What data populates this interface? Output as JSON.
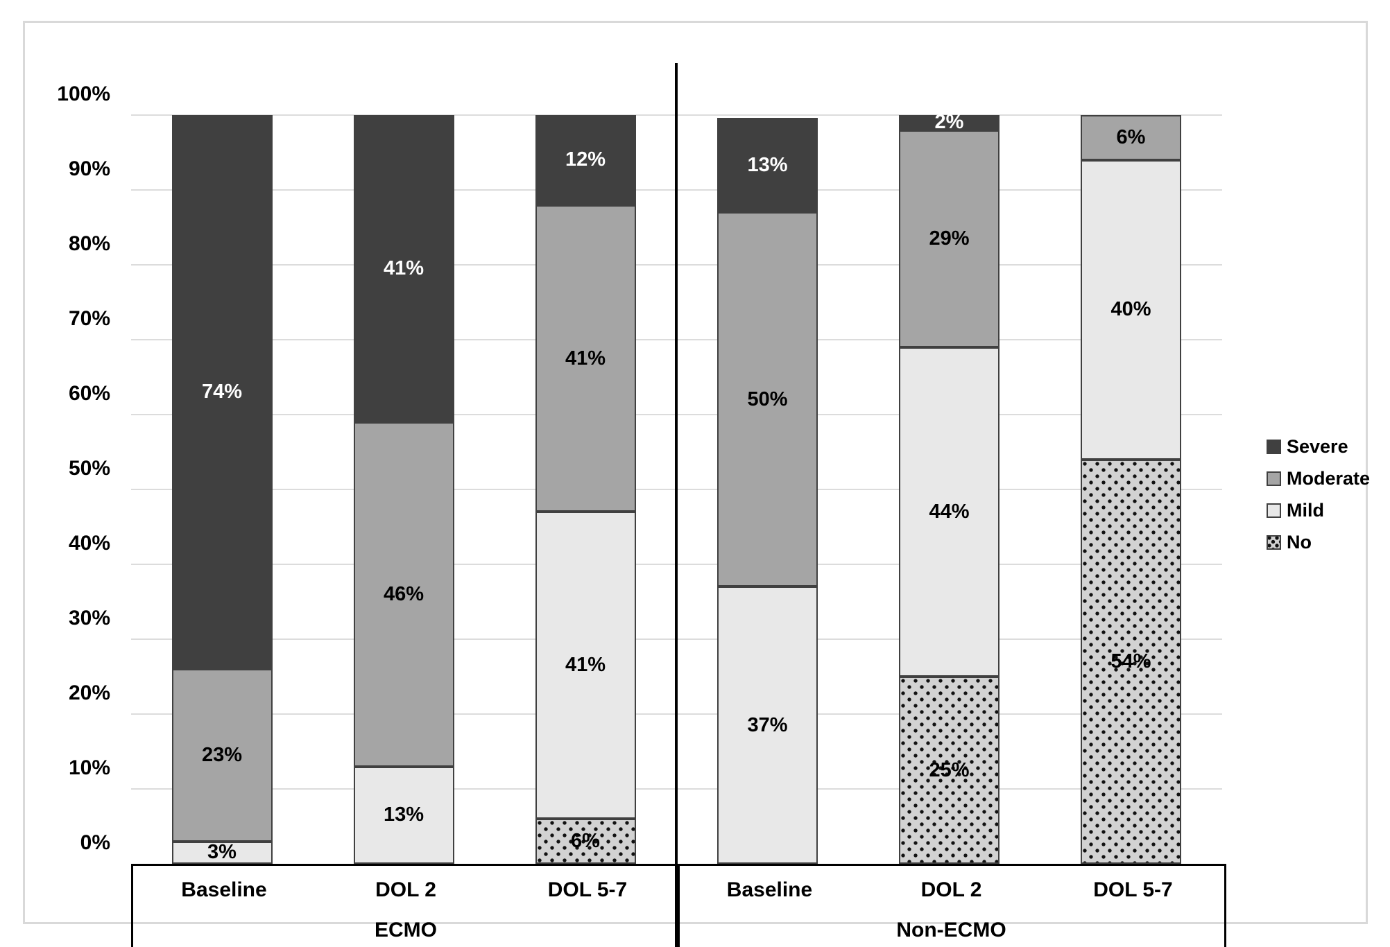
{
  "chart_data": {
    "type": "bar",
    "subtype": "100-percent-stacked-column",
    "title": "",
    "y_axis": {
      "label": "",
      "min": 0,
      "max": 100,
      "unit": "%",
      "ticks": [
        "0%",
        "10%",
        "20%",
        "30%",
        "40%",
        "50%",
        "60%",
        "70%",
        "80%",
        "90%",
        "100%"
      ],
      "grid": true
    },
    "series_stack_order_bottom_to_top": [
      "No",
      "Mild",
      "Moderate",
      "Severe"
    ],
    "legend": {
      "position": "right",
      "items": [
        {
          "label": "Severe",
          "color": "#404040",
          "pattern": "solid"
        },
        {
          "label": "Moderate",
          "color": "#a5a5a5",
          "pattern": "solid"
        },
        {
          "label": "Mild",
          "color": "#e8e8e8",
          "pattern": "solid"
        },
        {
          "label": "No",
          "color": "#d2d2d2",
          "pattern": "dots"
        }
      ]
    },
    "groups": [
      {
        "label": "ECMO",
        "categories": [
          "Baseline",
          "DOL 2",
          "DOL 5-7"
        ]
      },
      {
        "label": "Non-ECMO",
        "categories": [
          "Baseline",
          "DOL 2",
          "DOL 5-7"
        ]
      }
    ],
    "bars": [
      {
        "group": "ECMO",
        "category": "Baseline",
        "segments": [
          {
            "series": "Mild",
            "value": 3,
            "label": "3%",
            "height_pct": 3
          },
          {
            "series": "Moderate",
            "value": 23,
            "label": "23%",
            "height_pct": 23
          },
          {
            "series": "Severe",
            "value": 74,
            "label": "74%",
            "height_pct": 74
          }
        ]
      },
      {
        "group": "ECMO",
        "category": "DOL 2",
        "segments": [
          {
            "series": "Mild",
            "value": 13,
            "label": "13%",
            "height_pct": 13
          },
          {
            "series": "Moderate",
            "value": 46,
            "label": "46%",
            "height_pct": 46
          },
          {
            "series": "Severe",
            "value": 41,
            "label": "41%",
            "height_pct": 41
          }
        ]
      },
      {
        "group": "ECMO",
        "category": "DOL 5-7",
        "segments": [
          {
            "series": "No",
            "value": 6,
            "label": "6%",
            "height_pct": 6
          },
          {
            "series": "Mild",
            "value": 41,
            "label": "41%",
            "height_pct": 41
          },
          {
            "series": "Moderate",
            "value": 41,
            "label": "41%",
            "height_pct": 41
          },
          {
            "series": "Severe",
            "value": 12,
            "label": "12%",
            "height_pct": 12
          }
        ]
      },
      {
        "group": "Non-ECMO",
        "category": "Baseline",
        "segments": [
          {
            "series": "Mild",
            "value": 37,
            "label": "37%",
            "height_pct": 37
          },
          {
            "series": "Moderate",
            "value": 50,
            "label": "50%",
            "height_pct": 50
          },
          {
            "series": "Severe",
            "value": 13,
            "label": "13%",
            "height_pct": 12.6
          }
        ]
      },
      {
        "group": "Non-ECMO",
        "category": "DOL 2",
        "segments": [
          {
            "series": "No",
            "value": 25,
            "label": "25%",
            "height_pct": 25
          },
          {
            "series": "Mild",
            "value": 44,
            "label": "44%",
            "height_pct": 44
          },
          {
            "series": "Moderate",
            "value": 29,
            "label": "29%",
            "height_pct": 29
          },
          {
            "series": "Severe",
            "value": 2,
            "label": "2%",
            "height_pct": 2
          }
        ]
      },
      {
        "group": "Non-ECMO",
        "category": "DOL 5-7",
        "segments": [
          {
            "series": "No",
            "value": 54,
            "label": "54%",
            "height_pct": 54
          },
          {
            "series": "Mild",
            "value": 40,
            "label": "40%",
            "height_pct": 40
          },
          {
            "series": "Moderate",
            "value": 6,
            "label": "6%",
            "height_pct": 6
          }
        ]
      }
    ]
  },
  "colors": {
    "severe": "#404040",
    "moderate": "#a5a5a5",
    "mild": "#e8e8e8",
    "no_background": "#d2d2d2",
    "no_dot": "#111111",
    "segment_border": "#404040",
    "gridline": "#dcdcdc",
    "frame_border": "#d9d9d9",
    "axis_line": "#000000",
    "label_on_severe": "#ffffff",
    "label_default": "#000000"
  }
}
